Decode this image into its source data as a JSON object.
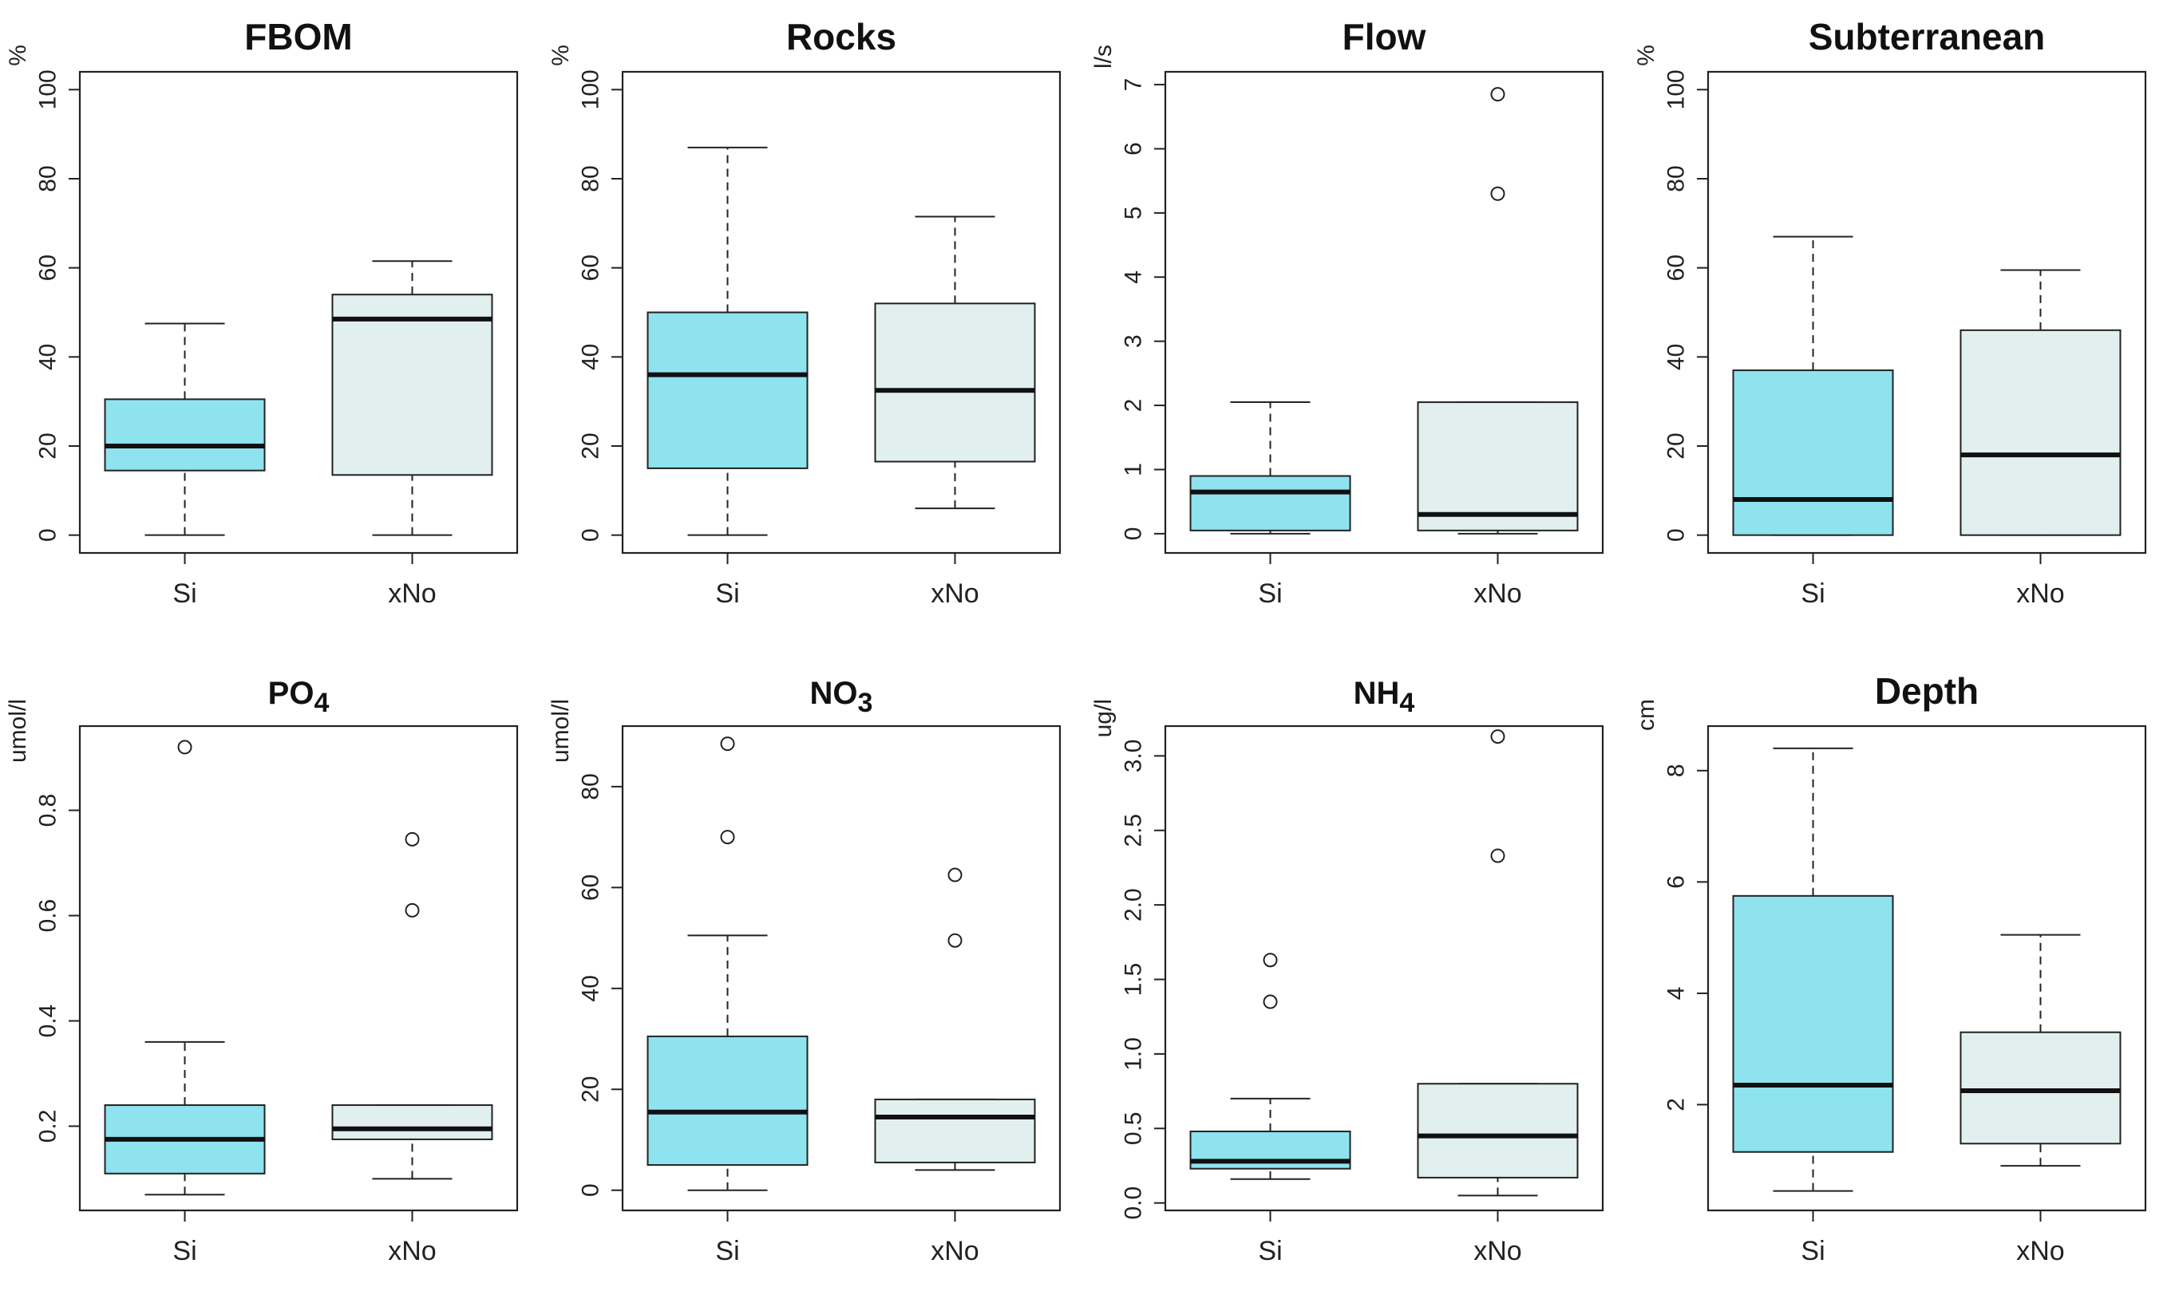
{
  "chart_data": [
    {
      "type": "boxplot",
      "title": "FBOM",
      "title_sub": "",
      "ylabel": "%",
      "ylim": [
        -4,
        104
      ],
      "yticks": [
        0,
        20,
        40,
        60,
        80,
        100
      ],
      "categories": [
        "Si",
        "xNo"
      ],
      "boxes": [
        {
          "name": "Si",
          "min": 0,
          "q1": 14.5,
          "median": 20,
          "q3": 30.5,
          "max": 47.5,
          "outliers": [],
          "color": "#8ee3ef"
        },
        {
          "name": "xNo",
          "min": 0,
          "q1": 13.5,
          "median": 48.5,
          "q3": 54,
          "max": 61.5,
          "outliers": [],
          "color": "#e1efef"
        }
      ]
    },
    {
      "type": "boxplot",
      "title": "Rocks",
      "title_sub": "",
      "ylabel": "%",
      "ylim": [
        -4,
        104
      ],
      "yticks": [
        0,
        20,
        40,
        60,
        80,
        100
      ],
      "categories": [
        "Si",
        "xNo"
      ],
      "boxes": [
        {
          "name": "Si",
          "min": 0,
          "q1": 15,
          "median": 36,
          "q3": 50,
          "max": 87,
          "outliers": [],
          "color": "#8ee3ef"
        },
        {
          "name": "xNo",
          "min": 6,
          "q1": 16.5,
          "median": 32.5,
          "q3": 52,
          "max": 71.5,
          "outliers": [],
          "color": "#e1efef"
        }
      ]
    },
    {
      "type": "boxplot",
      "title": "Flow",
      "title_sub": "",
      "ylabel": "l/s",
      "ylim": [
        -0.3,
        7.2
      ],
      "yticks": [
        0,
        1,
        2,
        3,
        4,
        5,
        6,
        7
      ],
      "categories": [
        "Si",
        "xNo"
      ],
      "boxes": [
        {
          "name": "Si",
          "min": 0,
          "q1": 0.05,
          "median": 0.65,
          "q3": 0.9,
          "max": 2.05,
          "outliers": [],
          "color": "#8ee3ef"
        },
        {
          "name": "xNo",
          "min": 0,
          "q1": 0.05,
          "median": 0.3,
          "q3": 2.05,
          "max": 2.05,
          "outliers": [
            5.3,
            6.85
          ],
          "color": "#e1efef"
        }
      ]
    },
    {
      "type": "boxplot",
      "title": "Subterranean",
      "title_sub": "",
      "ylabel": "%",
      "ylim": [
        -4,
        104
      ],
      "yticks": [
        0,
        20,
        40,
        60,
        80,
        100
      ],
      "categories": [
        "Si",
        "xNo"
      ],
      "boxes": [
        {
          "name": "Si",
          "min": 0,
          "q1": 0,
          "median": 8,
          "q3": 37,
          "max": 67,
          "outliers": [],
          "color": "#8ee3ef"
        },
        {
          "name": "xNo",
          "min": 0,
          "q1": 0,
          "median": 18,
          "q3": 46,
          "max": 59.5,
          "outliers": [],
          "color": "#e1efef"
        }
      ]
    },
    {
      "type": "boxplot",
      "title": "PO",
      "title_sub": "4",
      "ylabel": "umol/l",
      "ylim": [
        0.04,
        0.96
      ],
      "yticks": [
        0.2,
        0.4,
        0.6,
        0.8
      ],
      "categories": [
        "Si",
        "xNo"
      ],
      "boxes": [
        {
          "name": "Si",
          "min": 0.07,
          "q1": 0.11,
          "median": 0.175,
          "q3": 0.24,
          "max": 0.36,
          "outliers": [
            0.92
          ],
          "color": "#8ee3ef"
        },
        {
          "name": "xNo",
          "min": 0.1,
          "q1": 0.175,
          "median": 0.195,
          "q3": 0.24,
          "max": 0.24,
          "outliers": [
            0.61,
            0.745
          ],
          "color": "#e1efef"
        }
      ]
    },
    {
      "type": "boxplot",
      "title": "NO",
      "title_sub": "3",
      "ylabel": "umol/l",
      "ylim": [
        -4,
        92
      ],
      "yticks": [
        0,
        20,
        40,
        60,
        80
      ],
      "categories": [
        "Si",
        "xNo"
      ],
      "boxes": [
        {
          "name": "Si",
          "min": 0,
          "q1": 5,
          "median": 15.5,
          "q3": 30.5,
          "max": 50.5,
          "outliers": [
            70,
            88.5
          ],
          "color": "#8ee3ef"
        },
        {
          "name": "xNo",
          "min": 4,
          "q1": 5.5,
          "median": 14.5,
          "q3": 18,
          "max": 18,
          "outliers": [
            49.5,
            62.5
          ],
          "color": "#e1efef"
        }
      ]
    },
    {
      "type": "boxplot",
      "title": "NH",
      "title_sub": "4",
      "ylabel": "ug/l",
      "ylim": [
        -0.05,
        3.2
      ],
      "yticks": [
        0.0,
        0.5,
        1.0,
        1.5,
        2.0,
        2.5,
        3.0
      ],
      "categories": [
        "Si",
        "xNo"
      ],
      "boxes": [
        {
          "name": "Si",
          "min": 0.16,
          "q1": 0.23,
          "median": 0.28,
          "q3": 0.48,
          "max": 0.7,
          "outliers": [
            1.35,
            1.63
          ],
          "color": "#8ee3ef"
        },
        {
          "name": "xNo",
          "min": 0.05,
          "q1": 0.17,
          "median": 0.45,
          "q3": 0.8,
          "max": 0.8,
          "outliers": [
            2.33,
            3.13
          ],
          "color": "#e1efef"
        }
      ]
    },
    {
      "type": "boxplot",
      "title": "Depth",
      "title_sub": "",
      "ylabel": "cm",
      "ylim": [
        0.1,
        8.8
      ],
      "yticks": [
        2,
        4,
        6,
        8
      ],
      "categories": [
        "Si",
        "xNo"
      ],
      "boxes": [
        {
          "name": "Si",
          "min": 0.45,
          "q1": 1.15,
          "median": 2.35,
          "q3": 5.75,
          "max": 8.4,
          "outliers": [],
          "color": "#8ee3ef"
        },
        {
          "name": "xNo",
          "min": 0.9,
          "q1": 1.3,
          "median": 2.25,
          "q3": 3.3,
          "max": 5.05,
          "outliers": [],
          "color": "#e1efef"
        }
      ]
    }
  ]
}
